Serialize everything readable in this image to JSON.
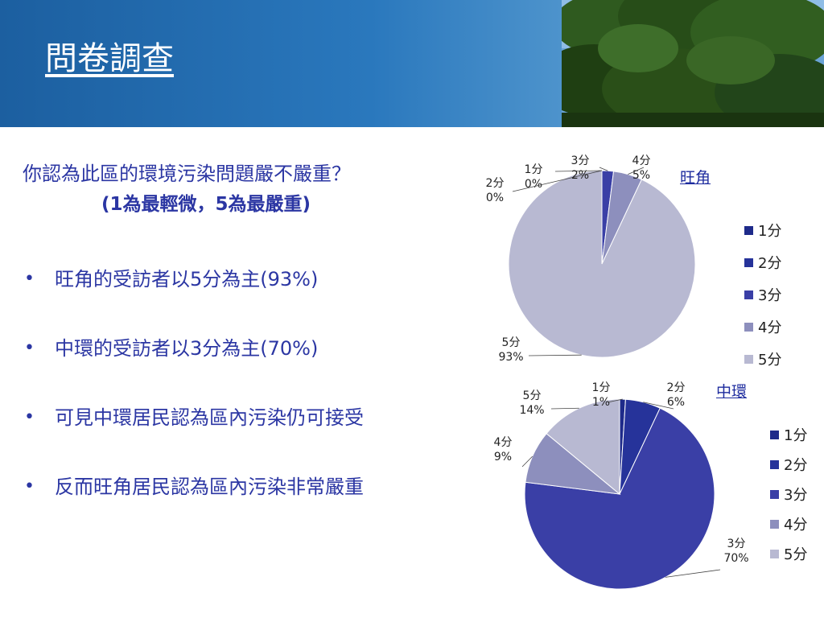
{
  "slide": {
    "title": "問卷調查"
  },
  "question": {
    "line1": "你認為此區的環境污染問題嚴不嚴重？",
    "line2": "(1為最輕微，5為最嚴重)"
  },
  "bullets": [
    "旺角的受訪者以5分為主(93%)",
    "中環的受訪者以3分為主(70%)",
    "可見中環居民認為區內污染仍可接受",
    "反而旺角居民認為區內污染非常嚴重"
  ],
  "colors": {
    "header": "#2a78bd",
    "text": "#2b36a3",
    "series": [
      "#1e2a8a",
      "#26339a",
      "#3a3fa6",
      "#8d8fbd",
      "#b8b9d2"
    ]
  },
  "chart_data": [
    {
      "type": "pie",
      "title": "旺角",
      "categories": [
        "1分",
        "2分",
        "3分",
        "4分",
        "5分"
      ],
      "values": [
        0,
        0,
        2,
        5,
        93
      ],
      "value_labels": [
        "0%",
        "0%",
        "2%",
        "5%",
        "93%"
      ],
      "legend": [
        "1分",
        "2分",
        "3分",
        "4分",
        "5分"
      ],
      "legend_position": "right"
    },
    {
      "type": "pie",
      "title": "中環",
      "categories": [
        "1分",
        "2分",
        "3分",
        "4分",
        "5分"
      ],
      "values": [
        1,
        6,
        70,
        9,
        14
      ],
      "value_labels": [
        "1%",
        "6%",
        "70%",
        "9%",
        "14%"
      ],
      "legend": [
        "1分",
        "2分",
        "3分",
        "4分",
        "5分"
      ],
      "legend_position": "right"
    }
  ]
}
